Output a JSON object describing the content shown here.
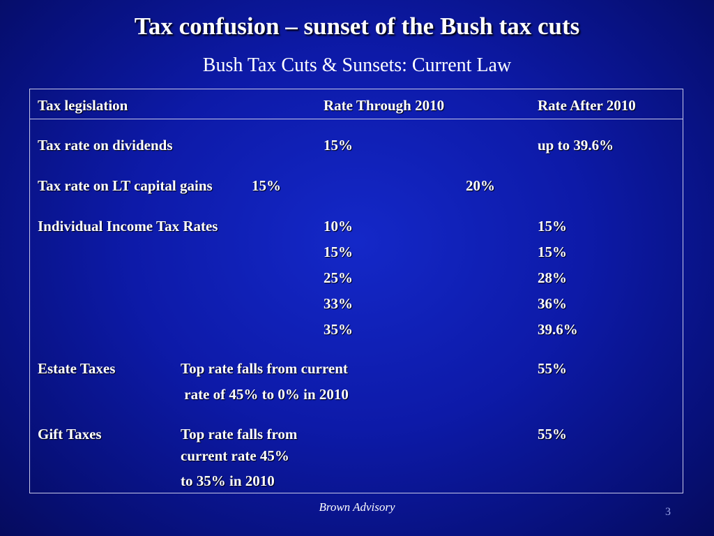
{
  "slide": {
    "title": "Tax confusion – sunset of the Bush tax cuts",
    "subtitle": "Bush Tax Cuts & Sunsets: Current Law",
    "footer": "Brown Advisory",
    "page_number": "3"
  },
  "table": {
    "headers": {
      "legislation": "Tax legislation",
      "through_2010": "Rate Through 2010",
      "after_2010": "Rate After 2010"
    },
    "dividends": {
      "label": "Tax rate on dividends",
      "through": "15%",
      "after": "up to 39.6%"
    },
    "capital_gains": {
      "label": "Tax rate on LT capital gains",
      "through": "15%",
      "after": "20%"
    },
    "income": {
      "label": "Individual Income Tax Rates",
      "through": [
        "10%",
        "15%",
        "25%",
        "33%",
        "35%"
      ],
      "after": [
        "15%",
        "15%",
        "28%",
        "36%",
        "39.6%"
      ]
    },
    "estate": {
      "label": "Estate Taxes",
      "desc_line1": "Top rate falls from current",
      "desc_line2": " rate of 45% to 0% in 2010",
      "after": "55%"
    },
    "gift": {
      "label": "Gift Taxes",
      "desc_line1": "Top rate falls from",
      "desc_line2": "current rate 45%",
      "desc_line3": "to 35% in 2010",
      "after": "55%"
    }
  }
}
